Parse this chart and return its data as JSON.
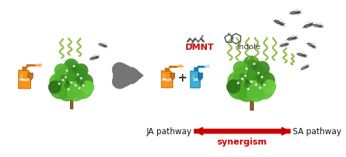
{
  "background_color": "#ffffff",
  "synergism_arrow_color": "#cc0000",
  "ja_pathway_text": "JA pathway",
  "sa_pathway_text": "SA pathway",
  "synergism_text": "synergism",
  "dmnt_text": "DMNT",
  "indole_text": "Indole",
  "meja_text": "MeJA",
  "sa_text": "SA",
  "plus_text": "+",
  "big_arrow_color": "#757575",
  "orange_spray_color": "#f5941d",
  "blue_spray_color": "#3cb0d8",
  "green_curl_color": "#8ab53a",
  "dark_green": "#2e6b1e",
  "mid_green": "#4a9a2a",
  "light_green": "#72c040",
  "wasp_color": "#444444",
  "dmnt_color": "#cc0000",
  "indole_color": "#333333",
  "pathway_text_color": "#111111",
  "synergism_color": "#cc0000",
  "brown_trunk": "#8b5c2a",
  "figwidth": 5.0,
  "figheight": 2.28,
  "dpi": 100
}
